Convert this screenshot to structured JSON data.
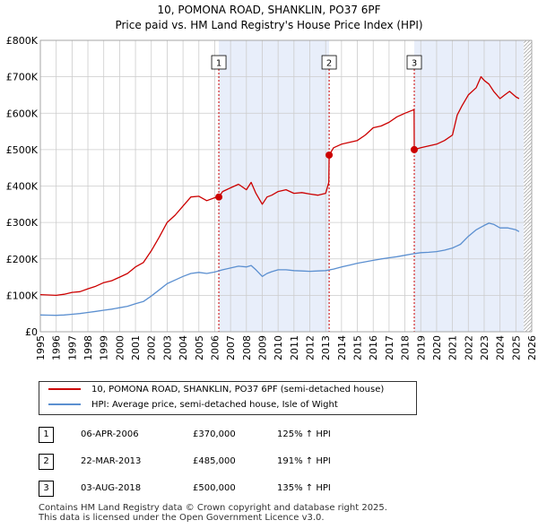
{
  "title_line1": "10, POMONA ROAD, SHANKLIN, PO37 6PF",
  "title_line2": "Price paid vs. HM Land Registry's House Price Index (HPI)",
  "colors": {
    "property": "#cc0000",
    "hpi": "#5b8fd0",
    "shade": "#e8eefa",
    "grid": "#cccccc",
    "vline": "#cc0000"
  },
  "chart_data": {
    "type": "line",
    "ylabel": "",
    "xlabel": "",
    "xlim": [
      1995,
      2026
    ],
    "ylim": [
      0,
      800000
    ],
    "y_ticks": [
      0,
      100000,
      200000,
      300000,
      400000,
      500000,
      600000,
      700000,
      800000
    ],
    "y_tick_labels": [
      "£0",
      "£100K",
      "£200K",
      "£300K",
      "£400K",
      "£500K",
      "£600K",
      "£700K",
      "£800K"
    ],
    "x_ticks": [
      1995,
      1996,
      1997,
      1998,
      1999,
      2000,
      2001,
      2002,
      2003,
      2004,
      2005,
      2006,
      2007,
      2008,
      2009,
      2010,
      2011,
      2012,
      2013,
      2014,
      2015,
      2016,
      2017,
      2018,
      2019,
      2020,
      2021,
      2022,
      2023,
      2024,
      2025,
      2026
    ],
    "x_tick_labels": [
      "1995",
      "1996",
      "1997",
      "1998",
      "1999",
      "2000",
      "2001",
      "2002",
      "2003",
      "2004",
      "2005",
      "2006",
      "2007",
      "2008",
      "2009",
      "2010",
      "2011",
      "2012",
      "2013",
      "2014",
      "2015",
      "2016",
      "2017",
      "2018",
      "2019",
      "2020",
      "2021",
      "2022",
      "2023",
      "2024",
      "2025",
      "2026"
    ],
    "shaded_regions": [
      [
        2006.26,
        2013.22
      ],
      [
        2018.59,
        2025.5
      ]
    ],
    "hatched_region": [
      2025.5,
      2026
    ],
    "series": [
      {
        "name": "10, POMONA ROAD, SHANKLIN, PO37 6PF (semi-detached house)",
        "x": [
          1995,
          1995.5,
          1996,
          1996.5,
          1997,
          1997.5,
          1998,
          1998.5,
          1999,
          1999.5,
          2000,
          2000.5,
          2001,
          2001.5,
          2002,
          2002.5,
          2003,
          2003.5,
          2004,
          2004.5,
          2005,
          2005.5,
          2006,
          2006.26,
          2006.5,
          2007,
          2007.5,
          2008,
          2008.3,
          2008.6,
          2009,
          2009.3,
          2009.6,
          2010,
          2010.5,
          2011,
          2011.5,
          2012,
          2012.5,
          2013,
          2013.2,
          2013.22,
          2013.5,
          2014,
          2014.5,
          2015,
          2015.5,
          2016,
          2016.5,
          2017,
          2017.5,
          2018,
          2018.3,
          2018.58,
          2018.59,
          2019,
          2019.5,
          2020,
          2020.5,
          2021,
          2021.3,
          2021.6,
          2022,
          2022.5,
          2022.8,
          2023,
          2023.3,
          2023.6,
          2024,
          2024.3,
          2024.6,
          2025,
          2025.2
        ],
        "values": [
          102000,
          101000,
          100000,
          103000,
          108000,
          110000,
          118000,
          125000,
          135000,
          140000,
          150000,
          160000,
          178000,
          190000,
          222000,
          260000,
          300000,
          320000,
          345000,
          370000,
          372000,
          360000,
          368000,
          370000,
          385000,
          395000,
          405000,
          390000,
          410000,
          380000,
          350000,
          370000,
          375000,
          385000,
          390000,
          380000,
          382000,
          378000,
          375000,
          380000,
          410000,
          485000,
          505000,
          515000,
          520000,
          525000,
          540000,
          560000,
          565000,
          575000,
          590000,
          600000,
          605000,
          610000,
          500000,
          505000,
          510000,
          515000,
          525000,
          540000,
          595000,
          620000,
          650000,
          670000,
          700000,
          690000,
          680000,
          660000,
          640000,
          650000,
          660000,
          645000,
          640000
        ]
      },
      {
        "name": "HPI: Average price, semi-detached house, Isle of Wight",
        "x": [
          1995,
          1995.5,
          1996,
          1996.5,
          1997,
          1997.5,
          1998,
          1998.5,
          1999,
          1999.5,
          2000,
          2000.5,
          2001,
          2001.5,
          2002,
          2002.5,
          2003,
          2003.5,
          2004,
          2004.5,
          2005,
          2005.5,
          2006,
          2006.5,
          2007,
          2007.5,
          2008,
          2008.3,
          2008.6,
          2009,
          2009.3,
          2009.6,
          2010,
          2010.5,
          2011,
          2011.5,
          2012,
          2012.5,
          2013,
          2013.5,
          2014,
          2014.5,
          2015,
          2015.5,
          2016,
          2016.5,
          2017,
          2017.5,
          2018,
          2018.5,
          2019,
          2019.5,
          2020,
          2020.5,
          2021,
          2021.5,
          2022,
          2022.5,
          2023,
          2023.3,
          2023.6,
          2024,
          2024.5,
          2025,
          2025.2
        ],
        "values": [
          46000,
          45500,
          45000,
          46000,
          48000,
          50000,
          53000,
          56000,
          59000,
          62000,
          66000,
          70000,
          77000,
          83000,
          98000,
          115000,
          132000,
          142000,
          152000,
          160000,
          163000,
          160000,
          164000,
          170000,
          175000,
          180000,
          178000,
          182000,
          170000,
          152000,
          160000,
          165000,
          170000,
          170000,
          168000,
          167000,
          166000,
          167000,
          168000,
          172000,
          178000,
          183000,
          188000,
          192000,
          196000,
          200000,
          203000,
          206000,
          210000,
          214000,
          217000,
          218000,
          220000,
          224000,
          230000,
          240000,
          262000,
          280000,
          292000,
          298000,
          295000,
          285000,
          285000,
          280000,
          275000
        ]
      }
    ],
    "sales": [
      {
        "num": "1",
        "x": 2006.26,
        "value": 370000
      },
      {
        "num": "2",
        "x": 2013.22,
        "value": 485000
      },
      {
        "num": "3",
        "x": 2018.59,
        "value": 500000
      }
    ]
  },
  "legend": {
    "property": "10, POMONA ROAD, SHANKLIN, PO37 6PF (semi-detached house)",
    "hpi": "HPI: Average price, semi-detached house, Isle of Wight"
  },
  "sales_table": [
    {
      "num": "1",
      "date": "06-APR-2006",
      "price": "£370,000",
      "hpi": "125% ↑ HPI"
    },
    {
      "num": "2",
      "date": "22-MAR-2013",
      "price": "£485,000",
      "hpi": "191% ↑ HPI"
    },
    {
      "num": "3",
      "date": "03-AUG-2018",
      "price": "£500,000",
      "hpi": "135% ↑ HPI"
    }
  ],
  "footer_line1": "Contains HM Land Registry data © Crown copyright and database right 2025.",
  "footer_line2": "This data is licensed under the Open Government Licence v3.0."
}
